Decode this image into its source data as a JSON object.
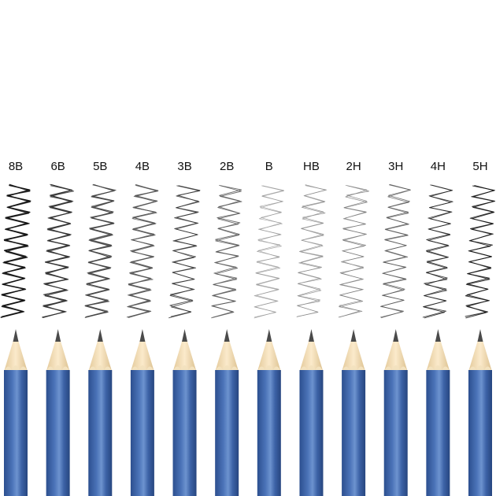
{
  "grades": [
    "8B",
    "6B",
    "5B",
    "4B",
    "3B",
    "2B",
    "B",
    "HB",
    "2H",
    "3H",
    "4H",
    "5H"
  ]
}
